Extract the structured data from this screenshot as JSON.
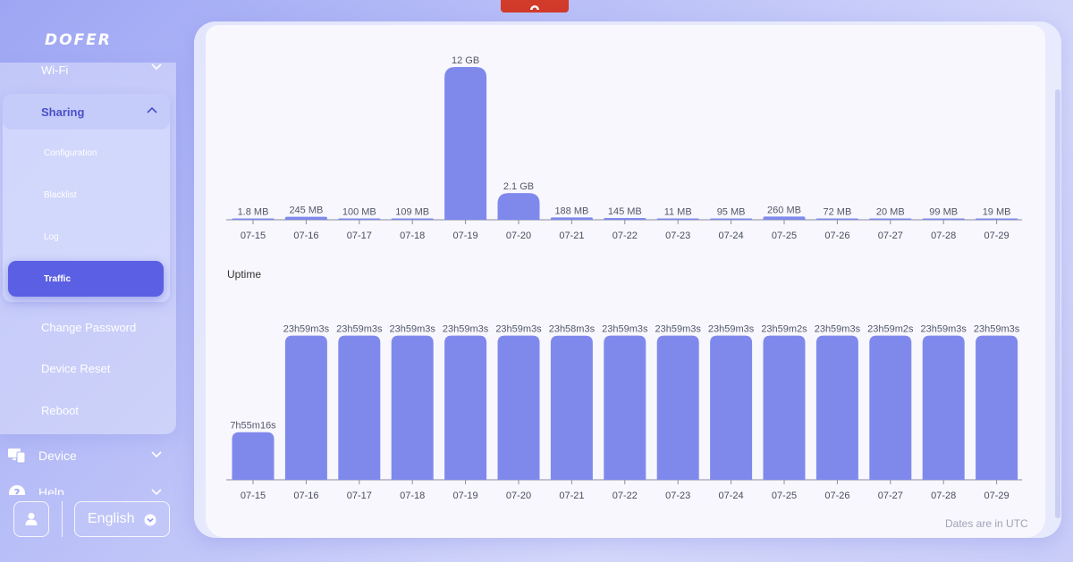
{
  "brand": {
    "logo_text": "DOFER"
  },
  "sidebar": {
    "wifi_label": "Wi-Fi",
    "sharing": {
      "label": "Sharing",
      "items": [
        "Configuration",
        "Blacklist",
        "Log",
        "Traffic"
      ],
      "active": "Traffic"
    },
    "change_password_label": "Change Password",
    "device_reset_label": "Device Reset",
    "reboot_label": "Reboot",
    "device_label": "Device",
    "help_label": "Help"
  },
  "bottom_bar": {
    "language": "English"
  },
  "colors": {
    "bar": "#7f89ec",
    "accent": "#5b5fe3",
    "top_handle": "#d23a2a"
  },
  "main": {
    "uptime_title": "Uptime",
    "footnote": "Dates are in UTC"
  },
  "chart_data": [
    {
      "type": "bar",
      "categories": [
        "07-15",
        "07-16",
        "07-17",
        "07-18",
        "07-19",
        "07-20",
        "07-21",
        "07-22",
        "07-23",
        "07-24",
        "07-25",
        "07-26",
        "07-27",
        "07-28",
        "07-29"
      ],
      "values_mb": [
        1.8,
        245,
        100,
        109,
        12288,
        2150,
        188,
        145,
        11,
        95,
        260,
        72,
        20,
        99,
        19
      ],
      "labels": [
        "1.8 MB",
        "245 MB",
        "100 MB",
        "109 MB",
        "12 GB",
        "2.1 GB",
        "188 MB",
        "145 MB",
        "11 MB",
        "95 MB",
        "260 MB",
        "72 MB",
        "20 MB",
        "99 MB",
        "19 MB"
      ],
      "title": "",
      "ylim": [
        0,
        12288
      ]
    },
    {
      "type": "bar",
      "title": "Uptime",
      "categories": [
        "07-15",
        "07-16",
        "07-17",
        "07-18",
        "07-19",
        "07-20",
        "07-21",
        "07-22",
        "07-23",
        "07-24",
        "07-25",
        "07-26",
        "07-27",
        "07-28",
        "07-29"
      ],
      "values_seconds": [
        28516,
        86343,
        86343,
        86343,
        86343,
        86343,
        86283,
        86343,
        86343,
        86343,
        86342,
        86343,
        86342,
        86343,
        86343
      ],
      "labels": [
        "7h55m16s",
        "23h59m3s",
        "23h59m3s",
        "23h59m3s",
        "23h59m3s",
        "23h59m3s",
        "23h58m3s",
        "23h59m3s",
        "23h59m3s",
        "23h59m3s",
        "23h59m2s",
        "23h59m3s",
        "23h59m2s",
        "23h59m3s",
        "23h59m3s"
      ],
      "ylim": [
        0,
        86400
      ]
    }
  ]
}
